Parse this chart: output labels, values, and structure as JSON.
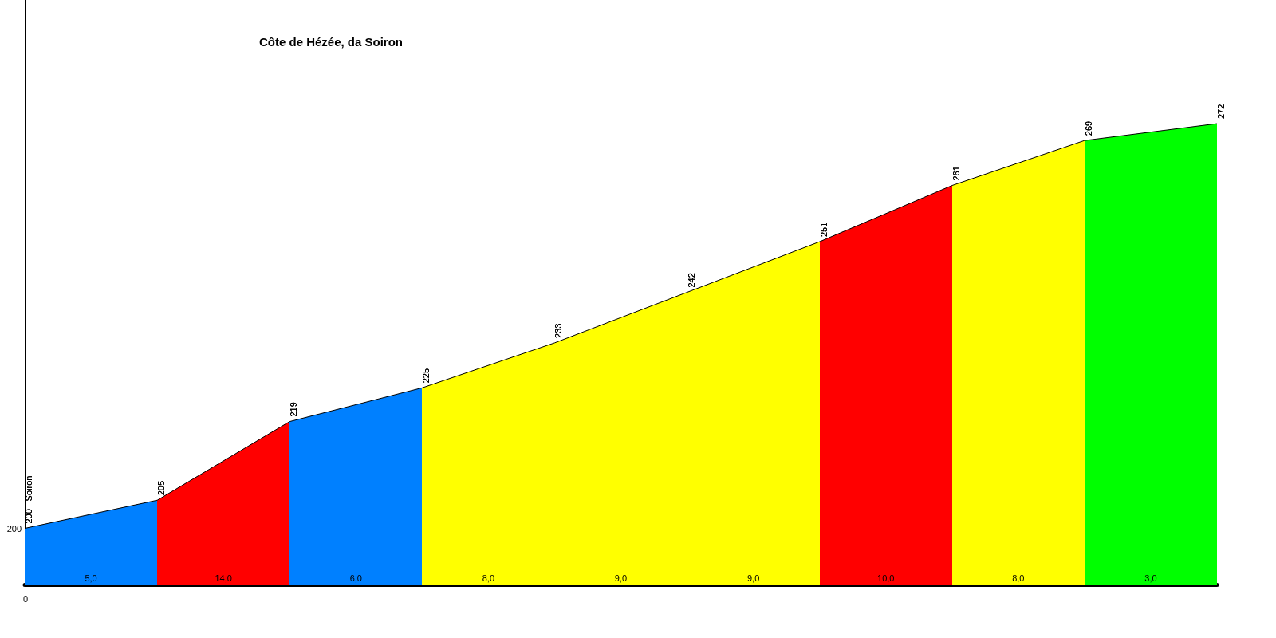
{
  "chart_data": {
    "type": "area",
    "title": "Côte de Hézée, da Soiron",
    "categories": [
      null,
      null,
      null,
      null,
      null,
      null,
      null,
      null,
      null,
      null
    ],
    "ylim": [
      190,
      294
    ],
    "values": [
      200,
      205,
      219,
      225,
      233,
      242,
      251,
      261,
      269,
      272
    ],
    "value_labels": [
      "200 - Soiron",
      "205",
      "219",
      "225",
      "233",
      "242",
      "251",
      "261",
      "269",
      "272"
    ],
    "colors": [
      "#0080ff",
      "#ff0000",
      "#0080ff",
      "#ffff00",
      "#ffff00",
      "#ffff00",
      "#ff0000",
      "#ffff00",
      "#00ff00",
      "#00ff00"
    ],
    "annotations": [
      "5,0",
      "14,0",
      "6,0",
      "8,0",
      "9,0",
      "9,0",
      "10,0",
      "8,0",
      "3,0",
      "200",
      "0"
    ],
    "color": "#000000",
    "grid": false,
    "marker": "none"
  }
}
